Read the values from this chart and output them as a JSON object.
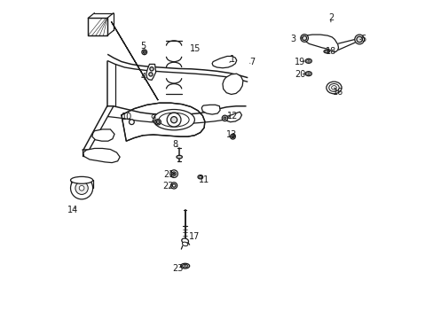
{
  "bg_color": "#ffffff",
  "line_color": "#1a1a1a",
  "figsize": [
    4.89,
    3.6
  ],
  "dpi": 100,
  "callouts": {
    "1": [
      0.548,
      0.815,
      0.535,
      0.8,
      "left"
    ],
    "2": [
      0.858,
      0.945,
      0.858,
      0.925,
      "center"
    ],
    "3": [
      0.74,
      0.878,
      0.77,
      0.883,
      "right"
    ],
    "4": [
      0.268,
      0.758,
      0.278,
      0.745,
      "right"
    ],
    "5": [
      0.268,
      0.858,
      0.275,
      0.843,
      "right"
    ],
    "6": [
      0.96,
      0.878,
      0.95,
      0.878,
      "left"
    ],
    "7": [
      0.61,
      0.808,
      0.598,
      0.798,
      "right"
    ],
    "8": [
      0.368,
      0.548,
      0.382,
      0.535,
      "right"
    ],
    "9": [
      0.3,
      0.628,
      0.315,
      0.618,
      "right"
    ],
    "10": [
      0.218,
      0.635,
      0.232,
      0.62,
      "right"
    ],
    "11": [
      0.46,
      0.435,
      0.45,
      0.448,
      "left"
    ],
    "12": [
      0.548,
      0.638,
      0.528,
      0.63,
      "right"
    ],
    "13": [
      0.545,
      0.578,
      0.555,
      0.575,
      "left"
    ],
    "14": [
      0.048,
      0.34,
      0.062,
      0.355,
      "right"
    ],
    "15": [
      0.432,
      0.848,
      0.418,
      0.838,
      "right"
    ],
    "16": [
      0.882,
      0.712,
      0.87,
      0.726,
      "left"
    ],
    "17": [
      0.428,
      0.258,
      0.402,
      0.272,
      "left"
    ],
    "18": [
      0.858,
      0.84,
      0.845,
      0.84,
      "left"
    ],
    "19": [
      0.762,
      0.808,
      0.782,
      0.81,
      "right"
    ],
    "20": [
      0.762,
      0.768,
      0.782,
      0.77,
      "right"
    ],
    "21": [
      0.348,
      0.452,
      0.365,
      0.455,
      "right"
    ],
    "22": [
      0.348,
      0.415,
      0.365,
      0.418,
      "right"
    ],
    "23": [
      0.378,
      0.158,
      0.398,
      0.168,
      "right"
    ]
  }
}
